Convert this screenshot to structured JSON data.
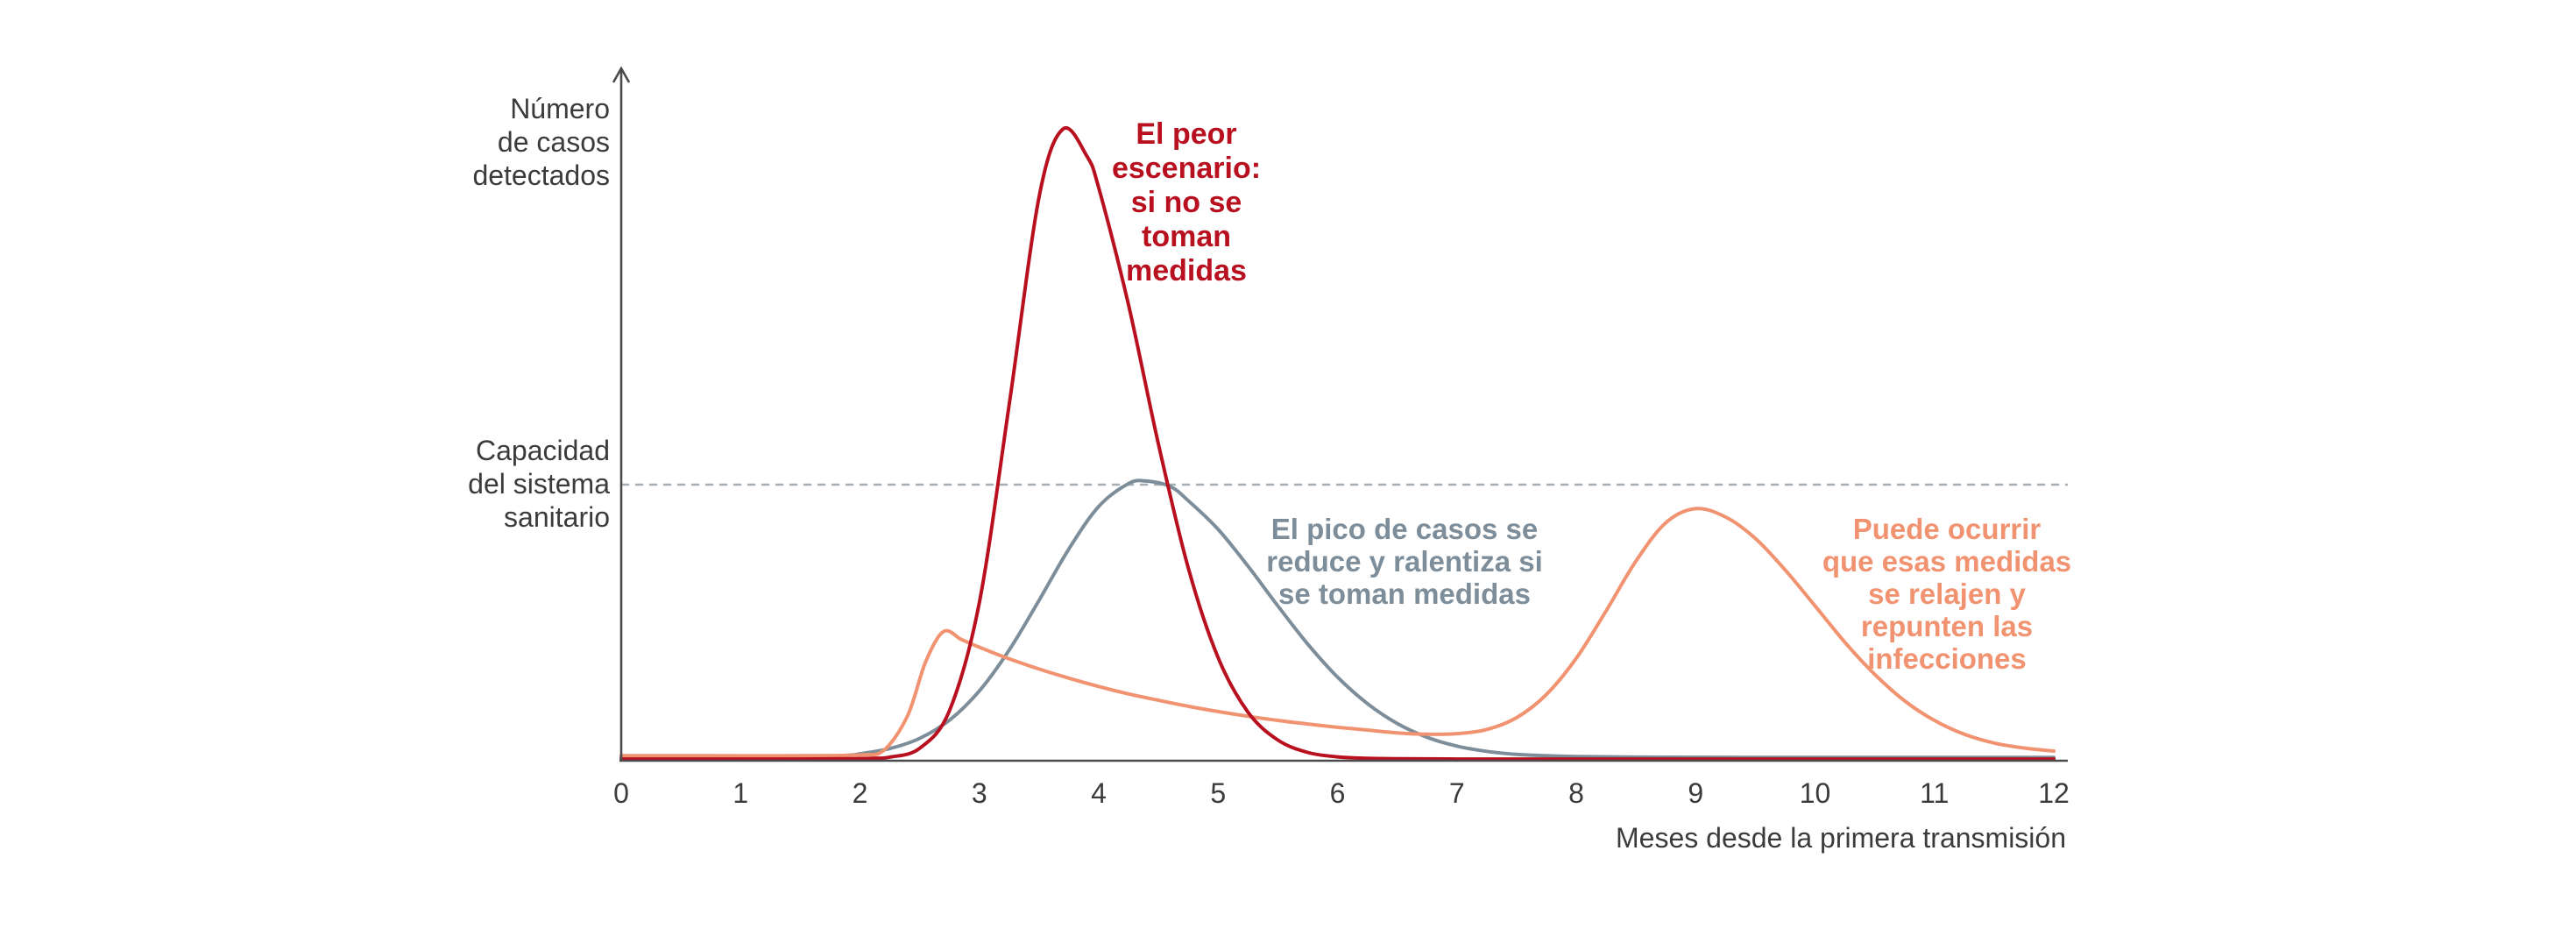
{
  "chart_data": {
    "type": "line",
    "title": "",
    "x_axis": {
      "label": "Meses desde la primera transmisión",
      "ticks": [
        0,
        1,
        2,
        3,
        4,
        5,
        6,
        7,
        8,
        9,
        10,
        11,
        12
      ],
      "range": [
        0,
        12
      ]
    },
    "y_axis": {
      "label": "Número\nde casos\ndetectados",
      "capacity_label": "Capacidad\ndel sistema\nsanitario",
      "capacity_value": 1.0,
      "range": [
        0,
        2.5
      ],
      "tick_labels": "none"
    },
    "grid": "none",
    "legend": "inline-annotations",
    "capacity_line": {
      "style": "dashed",
      "color": "#a7aeb5",
      "y": 1.0
    },
    "series": [
      {
        "id": "worst-case",
        "name": "El peor escenario: si no se toman medidas",
        "annotation": "El peor\nescenario:\nsi no se\ntoman\nmedidas",
        "color": "#b8101f",
        "peak": {
          "x": 3.7,
          "y": 2.29
        },
        "points": [
          [
            0,
            0.006
          ],
          [
            0.75,
            0.006
          ],
          [
            1.5,
            0.006
          ],
          [
            1.9,
            0.007
          ],
          [
            2.1,
            0.009
          ],
          [
            2.25,
            0.013
          ],
          [
            2.5,
            0.045
          ],
          [
            2.75,
            0.182
          ],
          [
            3,
            0.574
          ],
          [
            3.25,
            1.29
          ],
          [
            3.5,
            2.042
          ],
          [
            3.7,
            2.288
          ],
          [
            3.9,
            2.19
          ],
          [
            4,
            2.075
          ],
          [
            4.25,
            1.65
          ],
          [
            4.5,
            1.147
          ],
          [
            4.75,
            0.698
          ],
          [
            5,
            0.373
          ],
          [
            5.25,
            0.176
          ],
          [
            5.5,
            0.075
          ],
          [
            5.75,
            0.03
          ],
          [
            6,
            0.014
          ],
          [
            6.25,
            0.009
          ],
          [
            6.5,
            0.007
          ],
          [
            7,
            0.006
          ],
          [
            8,
            0.006
          ],
          [
            9,
            0.006
          ],
          [
            10,
            0.006
          ],
          [
            11,
            0.006
          ],
          [
            12,
            0.006
          ]
        ]
      },
      {
        "id": "with-measures",
        "name": "El pico de casos se reduce y ralentiza si se toman medidas",
        "annotation": "El pico de casos se\nreduce y ralentiza si\nse toman medidas",
        "color": "#7d8e9a",
        "peak": {
          "x": 4.4,
          "y": 1.01
        },
        "points": [
          [
            0,
            0.012
          ],
          [
            0.75,
            0.012
          ],
          [
            1.5,
            0.013
          ],
          [
            1.9,
            0.02
          ],
          [
            2,
            0.025
          ],
          [
            2.25,
            0.044
          ],
          [
            2.5,
            0.081
          ],
          [
            2.75,
            0.147
          ],
          [
            3,
            0.253
          ],
          [
            3.25,
            0.401
          ],
          [
            3.5,
            0.581
          ],
          [
            3.75,
            0.767
          ],
          [
            4,
            0.921
          ],
          [
            4.25,
            1.004
          ],
          [
            4.4,
            1.013
          ],
          [
            4.6,
            0.993
          ],
          [
            4.75,
            0.942
          ],
          [
            5,
            0.838
          ],
          [
            5.25,
            0.705
          ],
          [
            5.5,
            0.561
          ],
          [
            5.75,
            0.423
          ],
          [
            6,
            0.303
          ],
          [
            6.25,
            0.207
          ],
          [
            6.5,
            0.135
          ],
          [
            6.75,
            0.085
          ],
          [
            7,
            0.053
          ],
          [
            7.25,
            0.034
          ],
          [
            7.5,
            0.023
          ],
          [
            7.75,
            0.018
          ],
          [
            8,
            0.015
          ],
          [
            8.5,
            0.013
          ],
          [
            9.5,
            0.012
          ],
          [
            11,
            0.012
          ],
          [
            12,
            0.012
          ]
        ]
      },
      {
        "id": "rebound",
        "name": "Puede ocurrir que esas medidas se relajen y repunten las infecciones",
        "annotation": "Puede ocurrir\nque esas medidas\nse relajen y\nrepunten las\ninfecciones",
        "color": "#f19270",
        "peak": {
          "x": 9.0,
          "y": 0.91
        },
        "points": [
          [
            0,
            0.018
          ],
          [
            0.75,
            0.018
          ],
          [
            1.5,
            0.018
          ],
          [
            2,
            0.021
          ],
          [
            2.2,
            0.038
          ],
          [
            2.4,
            0.164
          ],
          [
            2.55,
            0.358
          ],
          [
            2.7,
            0.468
          ],
          [
            2.85,
            0.439
          ],
          [
            3,
            0.411
          ],
          [
            3.25,
            0.369
          ],
          [
            3.5,
            0.332
          ],
          [
            3.75,
            0.299
          ],
          [
            4,
            0.269
          ],
          [
            4.25,
            0.242
          ],
          [
            4.5,
            0.219
          ],
          [
            4.75,
            0.197
          ],
          [
            5,
            0.178
          ],
          [
            5.25,
            0.161
          ],
          [
            5.5,
            0.146
          ],
          [
            5.75,
            0.133
          ],
          [
            6,
            0.121
          ],
          [
            6.25,
            0.111
          ],
          [
            6.5,
            0.101
          ],
          [
            6.75,
            0.096
          ],
          [
            7,
            0.098
          ],
          [
            7.25,
            0.113
          ],
          [
            7.5,
            0.156
          ],
          [
            7.75,
            0.24
          ],
          [
            8,
            0.371
          ],
          [
            8.25,
            0.543
          ],
          [
            8.5,
            0.723
          ],
          [
            8.75,
            0.862
          ],
          [
            9,
            0.913
          ],
          [
            9.25,
            0.883
          ],
          [
            9.5,
            0.805
          ],
          [
            9.75,
            0.691
          ],
          [
            10,
            0.561
          ],
          [
            10.25,
            0.429
          ],
          [
            10.5,
            0.313
          ],
          [
            10.75,
            0.217
          ],
          [
            11,
            0.146
          ],
          [
            11.25,
            0.096
          ],
          [
            11.5,
            0.064
          ],
          [
            11.75,
            0.046
          ],
          [
            12,
            0.035
          ]
        ]
      }
    ],
    "style": {
      "background": "#ffffff",
      "axis_color": "#4b4b4d",
      "label_color": "#3b3b3d",
      "capacity_line_color": "#a7aeb5"
    }
  }
}
